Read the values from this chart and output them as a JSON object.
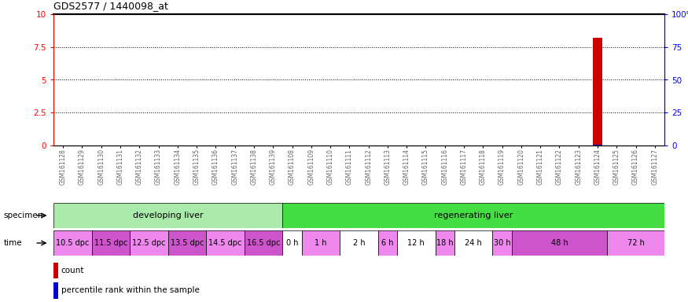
{
  "title": "GDS2577 / 1440098_at",
  "samples": [
    "GSM161128",
    "GSM161129",
    "GSM161130",
    "GSM161131",
    "GSM161132",
    "GSM161133",
    "GSM161134",
    "GSM161135",
    "GSM161136",
    "GSM161137",
    "GSM161138",
    "GSM161139",
    "GSM161108",
    "GSM161109",
    "GSM161110",
    "GSM161111",
    "GSM161112",
    "GSM161113",
    "GSM161114",
    "GSM161115",
    "GSM161116",
    "GSM161117",
    "GSM161118",
    "GSM161119",
    "GSM161120",
    "GSM161121",
    "GSM161122",
    "GSM161123",
    "GSM161124",
    "GSM161125",
    "GSM161126",
    "GSM161127"
  ],
  "bar_index": 28,
  "bar_value_red": 8.2,
  "bar_value_blue": 0.04,
  "ylim_left": [
    0,
    10
  ],
  "ylim_right": [
    0,
    100
  ],
  "yticks_left": [
    0,
    2.5,
    5,
    7.5,
    10
  ],
  "yticks_right": [
    0,
    25,
    50,
    75,
    100
  ],
  "ytick_labels_right": [
    "0",
    "25",
    "50",
    "75",
    "100%"
  ],
  "specimen_groups": [
    {
      "label": "developing liver",
      "start": 0,
      "end": 12,
      "color": "#aaeaaa"
    },
    {
      "label": "regenerating liver",
      "start": 12,
      "end": 32,
      "color": "#44dd44"
    }
  ],
  "time_groups": [
    {
      "label": "10.5 dpc",
      "start": 0,
      "end": 2,
      "color": "#ee88ee"
    },
    {
      "label": "11.5 dpc",
      "start": 2,
      "end": 4,
      "color": "#cc55cc"
    },
    {
      "label": "12.5 dpc",
      "start": 4,
      "end": 6,
      "color": "#ee88ee"
    },
    {
      "label": "13.5 dpc",
      "start": 6,
      "end": 8,
      "color": "#cc55cc"
    },
    {
      "label": "14.5 dpc",
      "start": 8,
      "end": 10,
      "color": "#ee88ee"
    },
    {
      "label": "16.5 dpc",
      "start": 10,
      "end": 12,
      "color": "#cc55cc"
    },
    {
      "label": "0 h",
      "start": 12,
      "end": 13,
      "color": "#ffffff"
    },
    {
      "label": "1 h",
      "start": 13,
      "end": 15,
      "color": "#ee88ee"
    },
    {
      "label": "2 h",
      "start": 15,
      "end": 17,
      "color": "#ffffff"
    },
    {
      "label": "6 h",
      "start": 17,
      "end": 18,
      "color": "#ee88ee"
    },
    {
      "label": "12 h",
      "start": 18,
      "end": 20,
      "color": "#ffffff"
    },
    {
      "label": "18 h",
      "start": 20,
      "end": 21,
      "color": "#ee88ee"
    },
    {
      "label": "24 h",
      "start": 21,
      "end": 23,
      "color": "#ffffff"
    },
    {
      "label": "30 h",
      "start": 23,
      "end": 24,
      "color": "#ee88ee"
    },
    {
      "label": "48 h",
      "start": 24,
      "end": 29,
      "color": "#cc55cc"
    },
    {
      "label": "72 h",
      "start": 29,
      "end": 32,
      "color": "#ee88ee"
    }
  ],
  "legend_color_red": "#cc0000",
  "legend_color_blue": "#0000cc",
  "legend_text_red": "count",
  "legend_text_blue": "percentile rank within the sample",
  "bar_color_red": "#cc0000",
  "bar_color_blue": "#0000cc"
}
